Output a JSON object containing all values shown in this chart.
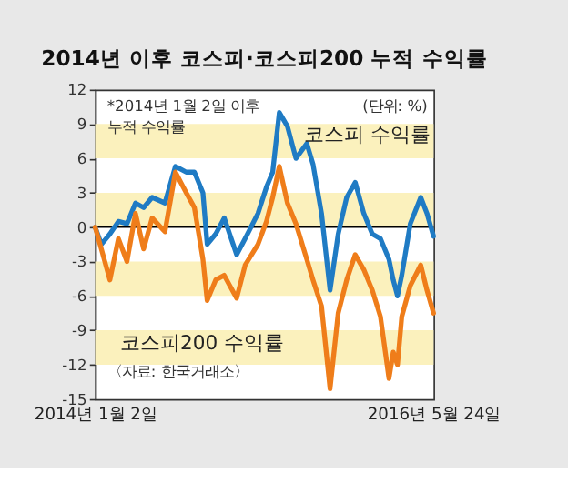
{
  "chart_data": {
    "type": "line",
    "title": "2014년 이후 코스피·코스피200 누적 수익률",
    "x": [
      "2014-01-02",
      "2014-01-18",
      "2014-02-09",
      "2014-03-03",
      "2014-03-25",
      "2014-04-16",
      "2014-05-07",
      "2014-05-29",
      "2014-07-01",
      "2014-07-28",
      "2014-08-25",
      "2014-09-15",
      "2014-10-07",
      "2014-10-18",
      "2014-11-09",
      "2014-12-01",
      "2015-01-02",
      "2015-01-24",
      "2015-02-26",
      "2015-03-20",
      "2015-04-05",
      "2015-04-22",
      "2015-05-13",
      "2015-06-04",
      "2015-07-02",
      "2015-07-18",
      "2015-08-09",
      "2015-08-31",
      "2015-09-21",
      "2015-10-13",
      "2015-11-04",
      "2015-11-26",
      "2015-12-18",
      "2016-01-08",
      "2016-01-30",
      "2016-02-10",
      "2016-02-21",
      "2016-03-03",
      "2016-03-25",
      "2016-04-21",
      "2016-05-07",
      "2016-05-24"
    ],
    "series": [
      {
        "name": "코스피 수익률",
        "color": "#1f7bc4",
        "values": [
          0,
          -1.5,
          -0.6,
          0.5,
          0.3,
          2.1,
          1.7,
          2.6,
          2.1,
          5.3,
          4.8,
          4.8,
          3.0,
          -1.5,
          -0.6,
          0.8,
          -2.4,
          -1.0,
          1.2,
          3.5,
          4.8,
          10.0,
          8.8,
          6.0,
          7.3,
          5.5,
          1.2,
          -5.5,
          -0.6,
          2.6,
          3.9,
          1.2,
          -0.6,
          -1.0,
          -2.8,
          -4.6,
          -6.0,
          -4.2,
          0.3,
          2.6,
          1.2,
          -0.8
        ]
      },
      {
        "name": "코스피200 수익률",
        "color": "#ef7d1a",
        "values": [
          0,
          -1.9,
          -4.6,
          -1.0,
          -3.0,
          1.2,
          -1.9,
          0.8,
          -0.4,
          4.8,
          3.0,
          1.7,
          -2.8,
          -6.4,
          -4.6,
          -4.2,
          -6.2,
          -3.3,
          -1.5,
          0.5,
          2.6,
          5.3,
          2.1,
          0.3,
          -2.8,
          -4.6,
          -6.9,
          -14.1,
          -7.5,
          -4.6,
          -2.4,
          -3.7,
          -5.5,
          -7.8,
          -13.2,
          -10.9,
          -12.0,
          -7.8,
          -5.1,
          -3.3,
          -5.5,
          -7.5
        ]
      }
    ],
    "xlim": [
      "2014-01-02",
      "2016-05-24"
    ],
    "xticks": [
      {
        "value": "2014-01-02",
        "label": "2014년 1월 2일"
      },
      {
        "value": "2016-05-24",
        "label": "2016년 5월 24일"
      }
    ],
    "ylim": [
      -15,
      12
    ],
    "yticks": [
      -15,
      -12,
      -9,
      -6,
      -3,
      0,
      3,
      6,
      9,
      12
    ],
    "grid": false,
    "legend": false,
    "ref_lines": [
      {
        "axis": "y",
        "value": 0,
        "color": "#000000"
      }
    ],
    "bands": [
      {
        "axis": "y",
        "from": 6,
        "to": 9,
        "color": "#fbf1bd"
      },
      {
        "axis": "y",
        "from": 0,
        "to": 3,
        "color": "#fbf1bd"
      },
      {
        "axis": "y",
        "from": -6,
        "to": -3,
        "color": "#fbf1bd"
      },
      {
        "axis": "y",
        "from": -12,
        "to": -9,
        "color": "#fbf1bd"
      }
    ],
    "annotations": [
      "*2014년 1월 2일 이후\n누적 수익률",
      "(단위: %)",
      "〈자료: 한국거래소〉"
    ]
  }
}
